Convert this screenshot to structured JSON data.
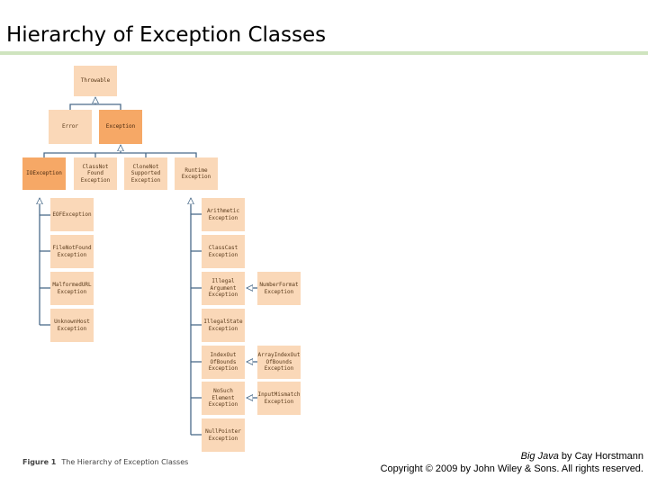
{
  "title": "Hierarchy of Exception Classes",
  "nodes": {
    "throwable": "Throwable",
    "error": "Error",
    "exception": "Exception",
    "ioexception": "IOException",
    "classnotfound": "ClassNot\nFound\nException",
    "clonenotsupported": "CloneNot\nSupported\nException",
    "runtime": "Runtime\nException",
    "eof": "EOFException",
    "filenotfound": "FileNotFound\nException",
    "malformedurl": "MalformedURL\nException",
    "unknownhost": "UnknownHost\nException",
    "arithmetic": "Arithmetic\nException",
    "classcast": "ClassCast\nException",
    "illegalargument": "Illegal\nArgument\nException",
    "numberformat": "NumberFormat\nException",
    "illegalstate": "IllegalState\nException",
    "indexoutofbounds": "IndexOut\nOfBounds\nException",
    "arrayindexoutofbounds": "ArrayIndexOut\nOfBounds\nException",
    "nosuchelement": "NoSuch\nElement\nException",
    "inputmismatch": "InputMismatch\nException",
    "nullpointer": "NullPointer\nException"
  },
  "caption": {
    "figure": "Figure 1",
    "text": "The Hierarchy of Exception Classes"
  },
  "credit": {
    "book": "Big Java",
    "by": " by Cay Horstmann",
    "copyright": "Copyright © 2009 by John Wiley & Sons.  All rights reserved."
  }
}
